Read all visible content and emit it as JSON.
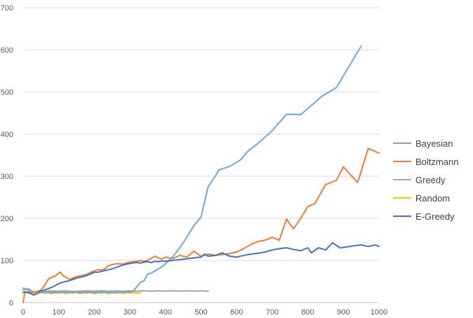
{
  "chart_data": {
    "type": "line",
    "title": "",
    "xlabel": "",
    "ylabel": "",
    "xlim": [
      0,
      1000
    ],
    "ylim": [
      0,
      700
    ],
    "x_ticks": [
      0,
      100,
      200,
      300,
      400,
      500,
      600,
      700,
      800,
      900,
      1000
    ],
    "y_ticks": [
      0,
      100,
      200,
      300,
      400,
      500,
      600,
      700
    ],
    "x_tick_labels": [
      "0",
      "100",
      "200",
      "300",
      "400",
      "500",
      "600",
      "700",
      "800",
      "900",
      "1000"
    ],
    "y_tick_labels": [
      "0",
      "100",
      "200",
      "300",
      "400",
      "500",
      "600",
      "700"
    ],
    "grid": "horizontal",
    "legend_position": "right",
    "series": [
      {
        "name": "Bayesian",
        "color": "#6FA8DC",
        "points": [
          [
            0,
            30
          ],
          [
            5,
            33
          ],
          [
            10,
            32
          ],
          [
            15,
            30
          ],
          [
            20,
            25
          ],
          [
            25,
            20
          ],
          [
            30,
            18
          ],
          [
            35,
            20
          ],
          [
            40,
            22
          ],
          [
            50,
            24
          ],
          [
            60,
            25
          ],
          [
            80,
            24
          ],
          [
            100,
            25
          ],
          [
            120,
            24
          ],
          [
            140,
            25
          ],
          [
            160,
            24
          ],
          [
            180,
            25
          ],
          [
            200,
            24
          ],
          [
            220,
            25
          ],
          [
            240,
            24
          ],
          [
            260,
            24
          ],
          [
            280,
            25
          ],
          [
            300,
            25
          ],
          [
            310,
            28
          ],
          [
            320,
            38
          ],
          [
            330,
            48
          ],
          [
            340,
            52
          ],
          [
            350,
            68
          ],
          [
            360,
            70
          ],
          [
            370,
            75
          ],
          [
            380,
            80
          ],
          [
            390,
            85
          ],
          [
            400,
            92
          ],
          [
            420,
            108
          ],
          [
            440,
            130
          ],
          [
            460,
            155
          ],
          [
            480,
            183
          ],
          [
            500,
            203
          ],
          [
            510,
            240
          ],
          [
            520,
            275
          ],
          [
            540,
            300
          ],
          [
            550,
            315
          ],
          [
            580,
            323
          ],
          [
            610,
            338
          ],
          [
            630,
            358
          ],
          [
            660,
            378
          ],
          [
            700,
            408
          ],
          [
            740,
            447
          ],
          [
            780,
            446
          ],
          [
            840,
            490
          ],
          [
            880,
            510
          ],
          [
            950,
            609
          ]
        ]
      },
      {
        "name": "Boltzmann",
        "color": "#ED7D31",
        "points": [
          [
            0,
            0
          ],
          [
            5,
            25
          ],
          [
            10,
            25
          ],
          [
            20,
            25
          ],
          [
            30,
            25
          ],
          [
            40,
            26
          ],
          [
            50,
            30
          ],
          [
            60,
            40
          ],
          [
            70,
            55
          ],
          [
            80,
            60
          ],
          [
            90,
            63
          ],
          [
            100,
            70
          ],
          [
            105,
            72
          ],
          [
            110,
            65
          ],
          [
            120,
            60
          ],
          [
            130,
            55
          ],
          [
            140,
            58
          ],
          [
            150,
            62
          ],
          [
            160,
            63
          ],
          [
            170,
            65
          ],
          [
            180,
            67
          ],
          [
            190,
            72
          ],
          [
            200,
            75
          ],
          [
            210,
            78
          ],
          [
            220,
            77
          ],
          [
            230,
            80
          ],
          [
            240,
            88
          ],
          [
            250,
            90
          ],
          [
            260,
            92
          ],
          [
            270,
            92
          ],
          [
            280,
            91
          ],
          [
            290,
            94
          ],
          [
            300,
            96
          ],
          [
            310,
            97
          ],
          [
            320,
            98
          ],
          [
            330,
            100
          ],
          [
            340,
            98
          ],
          [
            350,
            100
          ],
          [
            360,
            105
          ],
          [
            370,
            110
          ],
          [
            380,
            106
          ],
          [
            390,
            103
          ],
          [
            400,
            108
          ],
          [
            420,
            104
          ],
          [
            440,
            112
          ],
          [
            460,
            108
          ],
          [
            480,
            122
          ],
          [
            500,
            110
          ],
          [
            520,
            115
          ],
          [
            540,
            112
          ],
          [
            560,
            114
          ],
          [
            580,
            116
          ],
          [
            600,
            120
          ],
          [
            620,
            128
          ],
          [
            640,
            138
          ],
          [
            660,
            145
          ],
          [
            680,
            148
          ],
          [
            700,
            155
          ],
          [
            720,
            148
          ],
          [
            740,
            198
          ],
          [
            760,
            175
          ],
          [
            780,
            200
          ],
          [
            800,
            228
          ],
          [
            820,
            235
          ],
          [
            850,
            280
          ],
          [
            880,
            290
          ],
          [
            900,
            322
          ],
          [
            940,
            285
          ],
          [
            970,
            366
          ],
          [
            1000,
            355
          ]
        ]
      },
      {
        "name": "Greedy",
        "color": "#A5A5A5",
        "points": [
          [
            0,
            35
          ],
          [
            5,
            30
          ],
          [
            10,
            32
          ],
          [
            15,
            33
          ],
          [
            20,
            30
          ],
          [
            30,
            25
          ],
          [
            40,
            27
          ],
          [
            60,
            27
          ],
          [
            80,
            28
          ],
          [
            100,
            27
          ],
          [
            120,
            28
          ],
          [
            140,
            26
          ],
          [
            160,
            27
          ],
          [
            180,
            28
          ],
          [
            200,
            27
          ],
          [
            220,
            28
          ],
          [
            240,
            27
          ],
          [
            260,
            28
          ],
          [
            280,
            27
          ],
          [
            300,
            28
          ],
          [
            320,
            27
          ],
          [
            340,
            28
          ],
          [
            360,
            27
          ],
          [
            380,
            28
          ],
          [
            400,
            27
          ],
          [
            420,
            28
          ],
          [
            440,
            27
          ],
          [
            460,
            28
          ],
          [
            480,
            27
          ],
          [
            500,
            28
          ],
          [
            520,
            27
          ]
        ]
      },
      {
        "name": "Random",
        "color": "#FFC000",
        "points": [
          [
            0,
            22
          ],
          [
            10,
            23
          ],
          [
            20,
            22
          ],
          [
            30,
            23
          ],
          [
            40,
            22
          ],
          [
            50,
            24
          ],
          [
            60,
            22
          ],
          [
            70,
            23
          ],
          [
            80,
            21
          ],
          [
            90,
            23
          ],
          [
            100,
            22
          ],
          [
            110,
            24
          ],
          [
            120,
            21
          ],
          [
            130,
            23
          ],
          [
            140,
            22
          ],
          [
            150,
            24
          ],
          [
            160,
            21
          ],
          [
            170,
            23
          ],
          [
            180,
            22
          ],
          [
            190,
            24
          ],
          [
            200,
            21
          ],
          [
            210,
            23
          ],
          [
            220,
            22
          ],
          [
            230,
            24
          ],
          [
            240,
            21
          ],
          [
            250,
            23
          ],
          [
            260,
            22
          ],
          [
            270,
            24
          ],
          [
            280,
            21
          ],
          [
            290,
            23
          ],
          [
            300,
            22
          ],
          [
            310,
            24
          ],
          [
            320,
            22
          ],
          [
            330,
            23
          ]
        ]
      },
      {
        "name": "E-Greedy",
        "color": "#4472C4",
        "points": [
          [
            0,
            25
          ],
          [
            10,
            25
          ],
          [
            20,
            22
          ],
          [
            30,
            18
          ],
          [
            40,
            22
          ],
          [
            50,
            28
          ],
          [
            60,
            30
          ],
          [
            70,
            33
          ],
          [
            80,
            36
          ],
          [
            90,
            40
          ],
          [
            100,
            45
          ],
          [
            110,
            48
          ],
          [
            120,
            50
          ],
          [
            130,
            52
          ],
          [
            140,
            55
          ],
          [
            150,
            58
          ],
          [
            160,
            60
          ],
          [
            170,
            62
          ],
          [
            180,
            65
          ],
          [
            190,
            68
          ],
          [
            200,
            72
          ],
          [
            210,
            72
          ],
          [
            220,
            74
          ],
          [
            230,
            76
          ],
          [
            240,
            78
          ],
          [
            250,
            80
          ],
          [
            260,
            83
          ],
          [
            270,
            86
          ],
          [
            280,
            89
          ],
          [
            290,
            91
          ],
          [
            300,
            93
          ],
          [
            310,
            94
          ],
          [
            320,
            95
          ],
          [
            330,
            94
          ],
          [
            340,
            96
          ],
          [
            350,
            97
          ],
          [
            360,
            95
          ],
          [
            370,
            98
          ],
          [
            380,
            97
          ],
          [
            390,
            99
          ],
          [
            400,
            98
          ],
          [
            420,
            100
          ],
          [
            440,
            102
          ],
          [
            460,
            104
          ],
          [
            480,
            106
          ],
          [
            500,
            108
          ],
          [
            510,
            115
          ],
          [
            520,
            110
          ],
          [
            540,
            112
          ],
          [
            560,
            118
          ],
          [
            580,
            110
          ],
          [
            600,
            108
          ],
          [
            620,
            112
          ],
          [
            640,
            115
          ],
          [
            660,
            117
          ],
          [
            680,
            120
          ],
          [
            700,
            125
          ],
          [
            720,
            128
          ],
          [
            740,
            130
          ],
          [
            760,
            126
          ],
          [
            780,
            123
          ],
          [
            800,
            130
          ],
          [
            810,
            118
          ],
          [
            830,
            130
          ],
          [
            850,
            125
          ],
          [
            870,
            142
          ],
          [
            890,
            130
          ],
          [
            910,
            132
          ],
          [
            930,
            135
          ],
          [
            950,
            137
          ],
          [
            970,
            133
          ],
          [
            990,
            137
          ],
          [
            1000,
            133
          ]
        ]
      }
    ]
  }
}
